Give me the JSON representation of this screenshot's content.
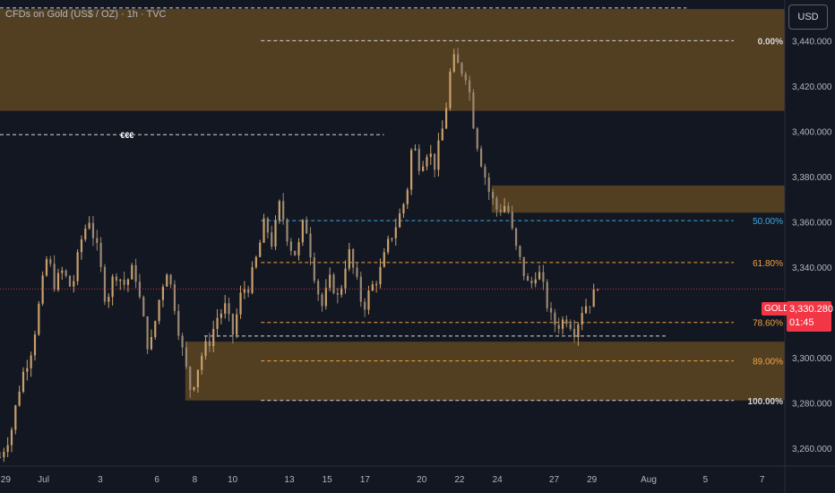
{
  "header": {
    "title": "CFDs on Gold (US$ / OZ) · 1h · TVC"
  },
  "currency_button": {
    "label": "USD"
  },
  "last_price": {
    "symbol": "GOLD",
    "value": "3,330.280",
    "countdown": "01:45"
  },
  "colors": {
    "background": "#131722",
    "zone": "#5e4622",
    "candle": "#c9a06a",
    "fib_orange": "#f0a341",
    "fib_blue": "#3fa9e0",
    "white_line": "#d6d6d6",
    "last_price_red": "#f23645"
  },
  "chart_data": {
    "type": "candlestick",
    "title": "CFDs on Gold (US$ / OZ) · 1h · TVC",
    "y_axis": {
      "range": [
        3252,
        3458
      ],
      "ticks": [
        3260,
        3280,
        3300,
        3320,
        3340,
        3360,
        3380,
        3400,
        3420,
        3440
      ],
      "tick_labels": [
        "3,260.000",
        "3,280.000",
        "3,300.000",
        "3,320.000",
        "3,340.000",
        "3,360.000",
        "3,380.000",
        "3,400.000",
        "3,420.000",
        "3,440.000"
      ]
    },
    "x_axis": {
      "tick_labels": [
        "29",
        "Jul",
        "3",
        "6",
        "8",
        "10",
        "13",
        "15",
        "17",
        "20",
        "22",
        "24",
        "27",
        "29",
        "Aug",
        "5",
        "7"
      ],
      "tick_days": [
        0,
        2,
        5,
        8,
        10,
        12,
        15,
        17,
        19,
        22,
        24,
        26,
        29,
        31,
        34,
        37,
        40
      ],
      "range": [
        -0.3,
        41.2
      ]
    },
    "zones": [
      {
        "day_start": -0.3,
        "day_end": 41.2,
        "price_low": 3409,
        "price_high": 3454
      },
      {
        "day_start": 25.7,
        "day_end": 41.2,
        "price_low": 3364,
        "price_high": 3376
      },
      {
        "day_start": 9.5,
        "day_end": 41.2,
        "price_low": 3281,
        "price_high": 3307
      }
    ],
    "fib_levels": [
      {
        "label": "0.00%",
        "price": 3440.0,
        "color": "white"
      },
      {
        "label": "50.00%",
        "price": 3360.5,
        "color": "blue"
      },
      {
        "label": "61.80%",
        "price": 3342.0,
        "color": "orange"
      },
      {
        "label": "78.60%",
        "price": 3315.5,
        "color": "orange"
      },
      {
        "label": "89.00%",
        "price": 3298.5,
        "color": "orange"
      },
      {
        "label": "100.00%",
        "price": 3281.0,
        "color": "white"
      }
    ],
    "fib_range": {
      "day_start": 13.5,
      "day_end": 38.5
    },
    "horizontal_lines": [
      {
        "price": 3454.5,
        "day_start": -0.3,
        "day_end": 36.0,
        "label": ""
      },
      {
        "price": 3398.5,
        "day_start": -0.3,
        "day_end": 20.0,
        "label": "€€€"
      },
      {
        "price": 3309.5,
        "day_start": 10.5,
        "day_end": 35.0,
        "label": ""
      }
    ],
    "last_price": 3330.28,
    "close_path": [
      [
        -0.3,
        3256
      ],
      [
        0.3,
        3268
      ],
      [
        0.8,
        3290
      ],
      [
        1.4,
        3305
      ],
      [
        1.8,
        3325
      ],
      [
        2.2,
        3345
      ],
      [
        2.6,
        3332
      ],
      [
        3.0,
        3338
      ],
      [
        3.5,
        3330
      ],
      [
        4.0,
        3352
      ],
      [
        4.4,
        3362
      ],
      [
        4.9,
        3345
      ],
      [
        5.3,
        3325
      ],
      [
        5.8,
        3338
      ],
      [
        6.3,
        3332
      ],
      [
        6.8,
        3340
      ],
      [
        7.2,
        3320
      ],
      [
        7.6,
        3302
      ],
      [
        8.1,
        3325
      ],
      [
        8.5,
        3340
      ],
      [
        8.9,
        3325
      ],
      [
        9.4,
        3300
      ],
      [
        9.8,
        3285
      ],
      [
        10.3,
        3300
      ],
      [
        10.8,
        3308
      ],
      [
        11.2,
        3318
      ],
      [
        11.6,
        3322
      ],
      [
        12.0,
        3310
      ],
      [
        12.5,
        3330
      ],
      [
        12.9,
        3332
      ],
      [
        13.3,
        3345
      ],
      [
        13.7,
        3360
      ],
      [
        14.1,
        3350
      ],
      [
        14.5,
        3368
      ],
      [
        15.0,
        3350
      ],
      [
        15.4,
        3345
      ],
      [
        15.8,
        3362
      ],
      [
        16.3,
        3338
      ],
      [
        16.7,
        3322
      ],
      [
        17.2,
        3335
      ],
      [
        17.6,
        3325
      ],
      [
        18.1,
        3348
      ],
      [
        18.5,
        3335
      ],
      [
        18.9,
        3322
      ],
      [
        19.3,
        3330
      ],
      [
        19.8,
        3338
      ],
      [
        20.3,
        3352
      ],
      [
        20.8,
        3362
      ],
      [
        21.2,
        3372
      ],
      [
        21.5,
        3395
      ],
      [
        21.9,
        3385
      ],
      [
        22.3,
        3392
      ],
      [
        22.7,
        3385
      ],
      [
        23.2,
        3405
      ],
      [
        23.6,
        3432
      ],
      [
        24.0,
        3428
      ],
      [
        24.4,
        3425
      ],
      [
        24.8,
        3400
      ],
      [
        25.2,
        3385
      ],
      [
        25.6,
        3372
      ],
      [
        26.0,
        3365
      ],
      [
        26.5,
        3368
      ],
      [
        26.9,
        3350
      ],
      [
        27.3,
        3340
      ],
      [
        27.7,
        3330
      ],
      [
        28.1,
        3340
      ],
      [
        28.5,
        3328
      ],
      [
        28.9,
        3315
      ],
      [
        29.3,
        3315
      ],
      [
        29.7,
        3318
      ],
      [
        30.1,
        3312
      ],
      [
        30.5,
        3322
      ],
      [
        30.9,
        3325
      ],
      [
        31.3,
        3330
      ]
    ]
  }
}
